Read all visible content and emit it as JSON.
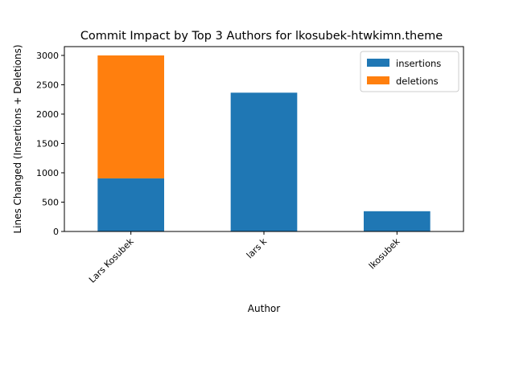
{
  "chart_data": {
    "type": "bar",
    "stacked": true,
    "title": "Commit Impact by Top 3 Authors for lkosubek-htwkimn.theme",
    "xlabel": "Author",
    "ylabel": "Lines Changed (Insertions + Deletions)",
    "categories": [
      "Lars Kosubek",
      "lars k",
      "lkosubek"
    ],
    "series": [
      {
        "name": "insertions",
        "values": [
          905,
          2365,
          345
        ],
        "color": "#1f77b4"
      },
      {
        "name": "deletions",
        "values": [
          2095,
          0,
          0
        ],
        "color": "#ff7f0e"
      }
    ],
    "ylim": [
      0,
      3150
    ],
    "yticks": [
      0,
      500,
      1000,
      1500,
      2000,
      2500,
      3000
    ],
    "grid": false,
    "legend_position": "top-right"
  }
}
